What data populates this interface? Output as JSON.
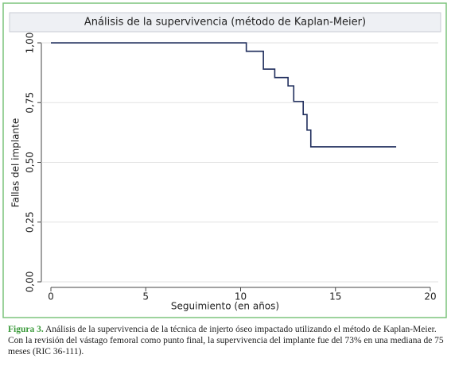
{
  "chart_data": {
    "type": "step",
    "title": "Análisis de la supervivencia (método de Kaplan-Meier)",
    "x_label": "Seguimiento (en años)",
    "y_label": "Fallas del implante",
    "x": [
      0,
      10.3,
      11.2,
      11.8,
      12.5,
      12.8,
      13.3,
      13.5,
      13.7,
      18.2
    ],
    "values": [
      1.0,
      0.965,
      0.89,
      0.855,
      0.82,
      0.755,
      0.7,
      0.635,
      0.565,
      0.565
    ],
    "color": "#1f2d5c",
    "xlim": [
      0,
      20
    ],
    "xticks": [
      0,
      5,
      10,
      15,
      20
    ],
    "ylim": [
      0,
      1
    ],
    "yticks": [
      {
        "value": 0,
        "label": "0,00"
      },
      {
        "value": 0.25,
        "label": "0,25"
      },
      {
        "value": 0.5,
        "label": "0,50"
      },
      {
        "value": 0.75,
        "label": "0,75"
      },
      {
        "value": 1,
        "label": "1,00"
      }
    ],
    "grid": true
  },
  "caption": {
    "label": "Figura 3.",
    "text": "Análisis de la supervivencia de la técnica de injerto óseo impactado utilizando el método de Kaplan-Meier. Con la revisión del vástago femoral como punto final, la supervivencia del implante fue del 73% en una mediana de 75 meses (RIC 36-111)."
  }
}
